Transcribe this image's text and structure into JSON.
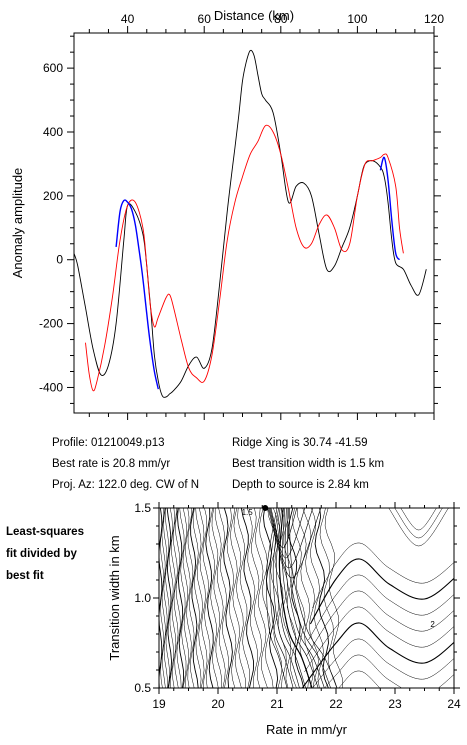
{
  "info": {
    "profile": "Profile: 01210049.p13",
    "ridge": "Ridge Xing is 30.74 -41.59",
    "rate": "Best rate is 20.8 mm/yr",
    "width": "Best transition width is 1.5 km",
    "proj": "Proj. Az: 122.0 deg. CW of N",
    "depth": "Depth to source is   2.84 km"
  },
  "side_note": [
    "Least-squares",
    "fit divided by",
    "best fit"
  ],
  "chart_data": [
    {
      "type": "line",
      "title": "",
      "xlabel": "Distance (km)",
      "ylabel": "Anomaly amplitude",
      "xlim": [
        26,
        120
      ],
      "ylim": [
        -480,
        710
      ],
      "x_ticks": [
        40,
        60,
        80,
        100,
        120
      ],
      "y_ticks": [
        600,
        400,
        200,
        0,
        -200,
        -400
      ],
      "series": [
        {
          "color": "#000000",
          "x": [
            26,
            27,
            29,
            31,
            33,
            35,
            37,
            39,
            40,
            42,
            44,
            45,
            46,
            47,
            48,
            49,
            50,
            51,
            52,
            54,
            56,
            58,
            60,
            62,
            64,
            66,
            68,
            69,
            70,
            71,
            72,
            73,
            74,
            75,
            76,
            78,
            80,
            82,
            84,
            86,
            88,
            90,
            92,
            94,
            96,
            98,
            100,
            101,
            102,
            104,
            106,
            107,
            108,
            109,
            110,
            112,
            114,
            116,
            118
          ],
          "y": [
            20,
            -20,
            -150,
            -280,
            -360,
            -330,
            -200,
            60,
            170,
            150,
            80,
            -20,
            -150,
            -300,
            -380,
            -425,
            -430,
            -420,
            -410,
            -380,
            -330,
            -305,
            -340,
            -280,
            -80,
            150,
            350,
            450,
            560,
            620,
            655,
            640,
            580,
            520,
            500,
            460,
            330,
            180,
            230,
            240,
            200,
            80,
            -30,
            -20,
            40,
            100,
            200,
            260,
            300,
            310,
            290,
            260,
            180,
            60,
            -10,
            -30,
            -80,
            -110,
            -30
          ]
        },
        {
          "color": "#ff0000",
          "x": [
            29,
            30,
            31,
            32,
            34,
            36,
            38,
            40,
            42,
            44,
            45,
            46,
            47,
            48,
            50,
            51,
            52,
            54,
            56,
            58,
            60,
            62,
            64,
            66,
            68,
            70,
            72,
            74,
            76,
            78,
            80,
            82,
            84,
            86,
            88,
            90,
            92,
            94,
            96,
            98,
            100,
            102,
            104,
            106,
            107,
            108,
            110,
            111,
            112
          ],
          "y": [
            -260,
            -360,
            -410,
            -380,
            -270,
            -120,
            60,
            170,
            180,
            100,
            -20,
            -150,
            -210,
            -180,
            -120,
            -110,
            -150,
            -250,
            -340,
            -370,
            -380,
            -300,
            -130,
            60,
            180,
            260,
            330,
            370,
            420,
            400,
            330,
            220,
            100,
            40,
            50,
            110,
            140,
            100,
            30,
            50,
            200,
            300,
            310,
            320,
            330,
            320,
            230,
            100,
            20
          ]
        },
        {
          "color": "#0000ff",
          "x": [
            37,
            38,
            39,
            40,
            41,
            42,
            43,
            44,
            45,
            46,
            47,
            48,
            106,
            107,
            108,
            109,
            110,
            111
          ],
          "y": [
            40,
            150,
            185,
            180,
            160,
            110,
            30,
            -60,
            -170,
            -270,
            -350,
            -405,
            280,
            320,
            250,
            120,
            20,
            0
          ]
        }
      ]
    },
    {
      "type": "contour",
      "title": "",
      "xlabel": "Rate in mm/yr",
      "ylabel": "Transition width in km",
      "xlim": [
        19,
        24
      ],
      "ylim": [
        0.5,
        1.5
      ],
      "x_ticks": [
        19,
        20,
        21,
        22,
        23,
        24
      ],
      "y_ticks": [
        0.5,
        1.0,
        1.5
      ],
      "best_fit": {
        "x": 20.8,
        "y": 1.5
      },
      "contour_labels": [
        {
          "text": "1.5",
          "x": 20.4,
          "y": 1.46
        },
        {
          "text": "2",
          "x": 23.6,
          "y": 0.84
        }
      ]
    }
  ]
}
